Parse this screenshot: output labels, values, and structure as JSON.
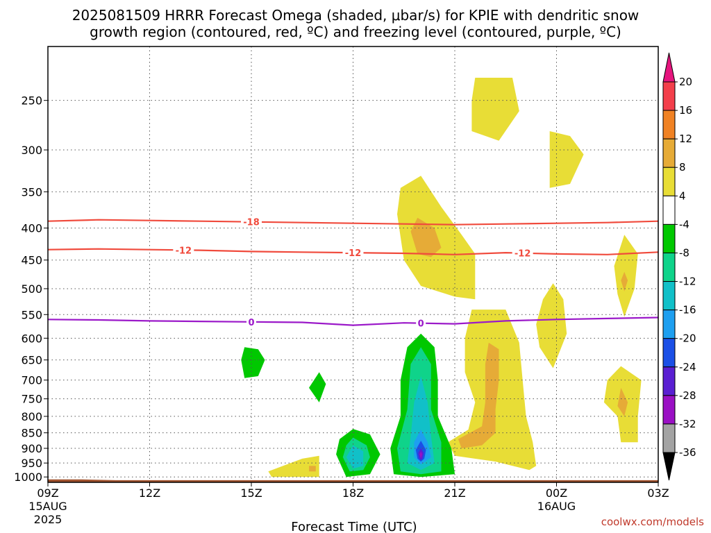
{
  "title_line1": "2025081509 HRRR Forecast Omega (shaded, μbar/s) for KPIE with dendritic snow",
  "title_line2": "growth region (contoured, red, ºC) and freezing level (contoured, purple, ºC)",
  "xlabel": "Forecast Time (UTC)",
  "credit": "coolwx.com/models",
  "chart_data": {
    "type": "heatmap",
    "y_scale": "log-pressure",
    "ylim": [
      1020,
      205
    ],
    "y_ticks": [
      250,
      300,
      350,
      400,
      450,
      500,
      550,
      600,
      650,
      700,
      750,
      800,
      850,
      900,
      950,
      1000
    ],
    "x_range_hours": [
      9,
      27
    ],
    "x_ticks": [
      {
        "hour": 9,
        "label": "09Z",
        "sub1": "15AUG",
        "sub2": "2025"
      },
      {
        "hour": 12,
        "label": "12Z",
        "sub1": "",
        "sub2": ""
      },
      {
        "hour": 15,
        "label": "15Z",
        "sub1": "",
        "sub2": ""
      },
      {
        "hour": 18,
        "label": "18Z",
        "sub1": "",
        "sub2": ""
      },
      {
        "hour": 21,
        "label": "21Z",
        "sub1": "",
        "sub2": ""
      },
      {
        "hour": 24,
        "label": "00Z",
        "sub1": "16AUG",
        "sub2": ""
      },
      {
        "hour": 27,
        "label": "03Z",
        "sub1": "",
        "sub2": ""
      }
    ],
    "grid": true,
    "colorbar": {
      "levels": [
        20,
        16,
        12,
        8,
        4,
        -4,
        -8,
        -12,
        -16,
        -20,
        -24,
        -28,
        -32,
        -36
      ],
      "colors": [
        "#f33f4b",
        "#f08224",
        "#e6ab37",
        "#e8dd36",
        "#ffffff",
        "#00c800",
        "#0fd38a",
        "#11c0c8",
        "#1e9ff0",
        "#1b4fe6",
        "#5a1fd2",
        "#9a10c4",
        "#a3a3a3"
      ],
      "top_arrow_color": "#e6157e",
      "bottom_arrow_color": "#000000"
    },
    "contours": [
      {
        "name": "-18",
        "color": "#f04a3c",
        "label_hour": 15.0,
        "points": [
          [
            9,
            390
          ],
          [
            10.5,
            388
          ],
          [
            12,
            389
          ],
          [
            13.5,
            390
          ],
          [
            15,
            391
          ],
          [
            16.5,
            392
          ],
          [
            18,
            393
          ],
          [
            19.5,
            394
          ],
          [
            21,
            395
          ],
          [
            22.5,
            394
          ],
          [
            24,
            393
          ],
          [
            25.5,
            392
          ],
          [
            27,
            390
          ]
        ]
      },
      {
        "name": "-12",
        "color": "#f04a3c",
        "label_hour": 13.0,
        "points": [
          [
            9,
            433
          ],
          [
            10.5,
            432
          ],
          [
            12,
            433
          ],
          [
            13.5,
            434
          ],
          [
            15,
            436
          ],
          [
            16.5,
            437
          ],
          [
            18,
            438
          ],
          [
            19.5,
            439
          ],
          [
            21,
            441
          ],
          [
            22.5,
            438
          ],
          [
            24,
            440
          ],
          [
            25.5,
            441
          ],
          [
            27,
            437
          ]
        ]
      },
      {
        "name": "0",
        "color": "#9b19c9",
        "label_hour": 15.0,
        "points": [
          [
            9,
            560
          ],
          [
            10.5,
            561
          ],
          [
            12,
            563
          ],
          [
            13.5,
            564
          ],
          [
            15,
            565
          ],
          [
            16.5,
            566
          ],
          [
            18,
            572
          ],
          [
            19.5,
            567
          ],
          [
            21,
            569
          ],
          [
            22.5,
            563
          ],
          [
            24,
            560
          ],
          [
            25.5,
            558
          ],
          [
            27,
            556
          ]
        ]
      }
    ],
    "extra_contour_labels": [
      {
        "contour": "-12",
        "hour": 18.0
      },
      {
        "contour": "-12",
        "hour": 23.0
      },
      {
        "contour": "0",
        "hour": 20.0
      }
    ],
    "regions": [
      {
        "value": 4,
        "points": [
          [
            21.6,
            230
          ],
          [
            22.7,
            230
          ],
          [
            22.9,
            260
          ],
          [
            22.3,
            290
          ],
          [
            21.5,
            280
          ],
          [
            21.5,
            250
          ]
        ]
      },
      {
        "value": 4,
        "points": [
          [
            23.8,
            280
          ],
          [
            24.4,
            285
          ],
          [
            24.8,
            305
          ],
          [
            24.4,
            340
          ],
          [
            23.8,
            345
          ],
          [
            23.8,
            300
          ]
        ]
      },
      {
        "value": 4,
        "points": [
          [
            19.4,
            345
          ],
          [
            20.0,
            330
          ],
          [
            20.6,
            370
          ],
          [
            21.2,
            410
          ],
          [
            21.6,
            440
          ],
          [
            21.6,
            520
          ],
          [
            21.0,
            515
          ],
          [
            20.0,
            495
          ],
          [
            19.5,
            450
          ],
          [
            19.3,
            380
          ]
        ]
      },
      {
        "value": 8,
        "points": [
          [
            19.9,
            385
          ],
          [
            20.4,
            400
          ],
          [
            20.6,
            430
          ],
          [
            20.3,
            445
          ],
          [
            19.9,
            440
          ],
          [
            19.7,
            405
          ]
        ]
      },
      {
        "value": 4,
        "points": [
          [
            21.5,
            540
          ],
          [
            22.5,
            540
          ],
          [
            22.9,
            610
          ],
          [
            23.0,
            700
          ],
          [
            23.1,
            800
          ],
          [
            23.3,
            880
          ],
          [
            23.4,
            960
          ],
          [
            23.2,
            975
          ],
          [
            22.2,
            945
          ],
          [
            21.0,
            925
          ],
          [
            20.8,
            880
          ],
          [
            21.4,
            840
          ],
          [
            21.6,
            760
          ],
          [
            21.3,
            680
          ],
          [
            21.3,
            600
          ]
        ]
      },
      {
        "value": 8,
        "points": [
          [
            22.0,
            610
          ],
          [
            22.3,
            625
          ],
          [
            22.3,
            700
          ],
          [
            22.2,
            780
          ],
          [
            22.2,
            850
          ],
          [
            21.8,
            890
          ],
          [
            21.2,
            900
          ],
          [
            21.1,
            870
          ],
          [
            21.8,
            830
          ],
          [
            21.9,
            760
          ],
          [
            21.9,
            660
          ]
        ]
      },
      {
        "value": 4,
        "points": [
          [
            23.9,
            490
          ],
          [
            24.2,
            520
          ],
          [
            24.3,
            590
          ],
          [
            23.9,
            670
          ],
          [
            23.5,
            620
          ],
          [
            23.4,
            570
          ],
          [
            23.6,
            520
          ]
        ]
      },
      {
        "value": 4,
        "points": [
          [
            26.0,
            410
          ],
          [
            26.4,
            440
          ],
          [
            26.3,
            500
          ],
          [
            26.0,
            555
          ],
          [
            25.8,
            510
          ],
          [
            25.7,
            460
          ]
        ]
      },
      {
        "value": 8,
        "points": [
          [
            26.0,
            470
          ],
          [
            26.1,
            485
          ],
          [
            26.0,
            505
          ],
          [
            25.9,
            485
          ]
        ]
      },
      {
        "value": 4,
        "points": [
          [
            25.9,
            665
          ],
          [
            26.5,
            700
          ],
          [
            26.4,
            800
          ],
          [
            26.4,
            880
          ],
          [
            25.9,
            880
          ],
          [
            25.8,
            800
          ],
          [
            25.4,
            760
          ],
          [
            25.5,
            700
          ]
        ]
      },
      {
        "value": 8,
        "points": [
          [
            25.9,
            720
          ],
          [
            26.1,
            760
          ],
          [
            26.0,
            800
          ],
          [
            25.8,
            770
          ]
        ]
      },
      {
        "value": 4,
        "points": [
          [
            15.5,
            980
          ],
          [
            16.5,
            935
          ],
          [
            17.0,
            925
          ],
          [
            17.0,
            1000
          ],
          [
            15.6,
            1000
          ]
        ]
      },
      {
        "value": 8,
        "points": [
          [
            16.7,
            960
          ],
          [
            16.9,
            960
          ],
          [
            16.9,
            980
          ],
          [
            16.7,
            980
          ]
        ]
      },
      {
        "value": -4,
        "points": [
          [
            14.8,
            620
          ],
          [
            15.2,
            625
          ],
          [
            15.4,
            650
          ],
          [
            15.2,
            690
          ],
          [
            14.8,
            695
          ],
          [
            14.7,
            650
          ]
        ]
      },
      {
        "value": -4,
        "points": [
          [
            17.0,
            680
          ],
          [
            17.2,
            710
          ],
          [
            17.0,
            760
          ],
          [
            16.7,
            720
          ]
        ]
      },
      {
        "value": -4,
        "points": [
          [
            18.0,
            838
          ],
          [
            18.5,
            855
          ],
          [
            18.8,
            920
          ],
          [
            18.5,
            990
          ],
          [
            17.8,
            1000
          ],
          [
            17.5,
            920
          ],
          [
            17.6,
            870
          ]
        ]
      },
      {
        "value": -8,
        "points": [
          [
            18.0,
            865
          ],
          [
            18.4,
            890
          ],
          [
            18.5,
            930
          ],
          [
            18.3,
            975
          ],
          [
            17.9,
            980
          ],
          [
            17.7,
            930
          ],
          [
            17.8,
            890
          ]
        ]
      },
      {
        "value": -12,
        "points": [
          [
            18.0,
            890
          ],
          [
            18.3,
            910
          ],
          [
            18.3,
            960
          ],
          [
            18.0,
            970
          ],
          [
            17.8,
            930
          ]
        ]
      },
      {
        "value": -4,
        "points": [
          [
            20.0,
            590
          ],
          [
            20.4,
            620
          ],
          [
            20.5,
            700
          ],
          [
            20.5,
            800
          ],
          [
            20.9,
            900
          ],
          [
            21.0,
            990
          ],
          [
            20.0,
            1000
          ],
          [
            19.2,
            990
          ],
          [
            19.1,
            900
          ],
          [
            19.4,
            800
          ],
          [
            19.4,
            700
          ],
          [
            19.6,
            620
          ]
        ]
      },
      {
        "value": -8,
        "points": [
          [
            20.0,
            620
          ],
          [
            20.3,
            660
          ],
          [
            20.3,
            780
          ],
          [
            20.6,
            880
          ],
          [
            20.6,
            980
          ],
          [
            20.0,
            990
          ],
          [
            19.4,
            980
          ],
          [
            19.3,
            900
          ],
          [
            19.6,
            780
          ],
          [
            19.7,
            660
          ]
        ]
      },
      {
        "value": -12,
        "points": [
          [
            20.0,
            690
          ],
          [
            20.2,
            760
          ],
          [
            20.3,
            860
          ],
          [
            20.4,
            950
          ],
          [
            20.0,
            975
          ],
          [
            19.6,
            950
          ],
          [
            19.7,
            860
          ],
          [
            19.8,
            760
          ]
        ]
      },
      {
        "value": -16,
        "points": [
          [
            20.0,
            840
          ],
          [
            20.2,
            880
          ],
          [
            20.3,
            930
          ],
          [
            20.0,
            955
          ],
          [
            19.8,
            930
          ],
          [
            19.8,
            880
          ]
        ]
      },
      {
        "value": -20,
        "points": [
          [
            20.0,
            875
          ],
          [
            20.15,
            905
          ],
          [
            20.1,
            935
          ],
          [
            20.0,
            945
          ],
          [
            19.9,
            935
          ],
          [
            19.85,
            905
          ]
        ]
      },
      {
        "value": -24,
        "points": [
          [
            20.0,
            900
          ],
          [
            20.08,
            915
          ],
          [
            20.05,
            935
          ],
          [
            20.0,
            940
          ],
          [
            19.95,
            935
          ],
          [
            19.92,
            915
          ]
        ]
      },
      {
        "value": -28,
        "points": [
          [
            20.0,
            910
          ],
          [
            20.04,
            920
          ],
          [
            20.0,
            935
          ],
          [
            19.96,
            920
          ]
        ]
      }
    ],
    "terrain": {
      "color": "#a0522d",
      "surface": [
        [
          9,
          1009
        ],
        [
          10.0,
          1009
        ],
        [
          11.0,
          1012
        ],
        [
          27,
          1012
        ]
      ]
    }
  }
}
